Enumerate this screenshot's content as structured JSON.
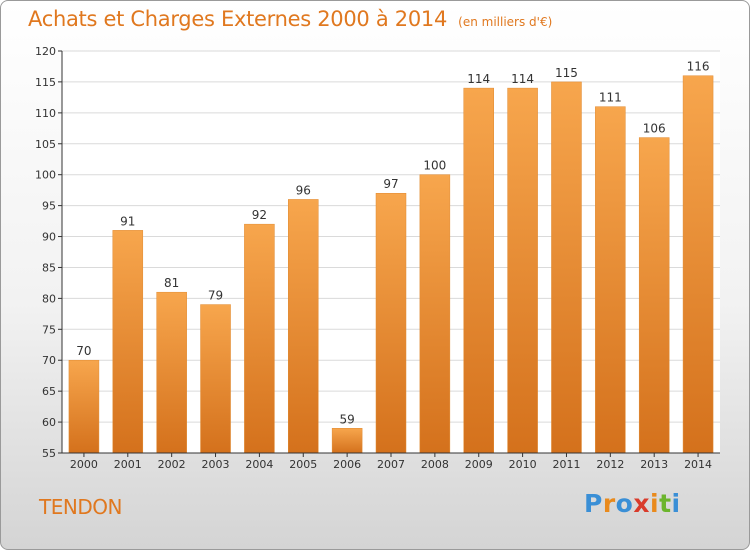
{
  "chart_data": {
    "type": "bar",
    "title": "Achats et Charges Externes 2000 à 2014",
    "subtitle": "(en milliers d'€)",
    "categories": [
      "2000",
      "2001",
      "2002",
      "2003",
      "2004",
      "2005",
      "2006",
      "2007",
      "2008",
      "2009",
      "2010",
      "2011",
      "2012",
      "2013",
      "2014"
    ],
    "values": [
      70,
      91,
      81,
      79,
      92,
      96,
      59,
      97,
      100,
      114,
      114,
      115,
      111,
      106,
      116
    ],
    "ylim": [
      55,
      120
    ],
    "yticks": [
      55,
      60,
      65,
      70,
      75,
      80,
      85,
      90,
      95,
      100,
      105,
      110,
      115,
      120
    ],
    "grid": true,
    "bar_color_top": "#f7a64d",
    "bar_color_bottom": "#d4711c"
  },
  "place_name": "TENDON",
  "logo": {
    "text": "Proxiti",
    "letter_colors": [
      "#3a8fd6",
      "#e98a1c",
      "#3a8fd6",
      "#d93b2b",
      "#e98a1c",
      "#6cb52d",
      "#3a8fd6"
    ]
  },
  "colors": {
    "title": "#e0781f",
    "axis": "#333333",
    "grid": "#dadada"
  }
}
